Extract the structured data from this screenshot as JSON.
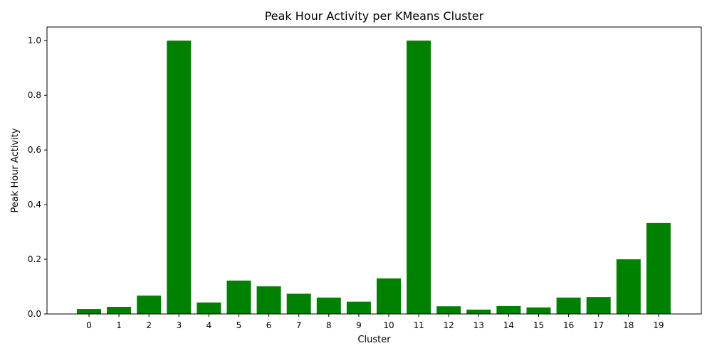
{
  "chart_data": {
    "type": "bar",
    "title": "Peak Hour Activity per KMeans Cluster",
    "xlabel": "Cluster",
    "ylabel": "Peak Hour Activity",
    "categories": [
      "0",
      "1",
      "2",
      "3",
      "4",
      "5",
      "6",
      "7",
      "8",
      "9",
      "10",
      "11",
      "12",
      "13",
      "14",
      "15",
      "16",
      "17",
      "18",
      "19"
    ],
    "values": [
      0.018,
      0.026,
      0.067,
      1.0,
      0.042,
      0.122,
      0.101,
      0.074,
      0.06,
      0.045,
      0.13,
      1.0,
      0.028,
      0.016,
      0.029,
      0.024,
      0.06,
      0.062,
      0.2,
      0.333
    ],
    "ylim": [
      0,
      1.05
    ],
    "yticks": [
      "0.0",
      "0.2",
      "0.4",
      "0.6",
      "0.8",
      "1.0"
    ],
    "bar_color": "#008000",
    "grid": false,
    "legend": "none"
  }
}
